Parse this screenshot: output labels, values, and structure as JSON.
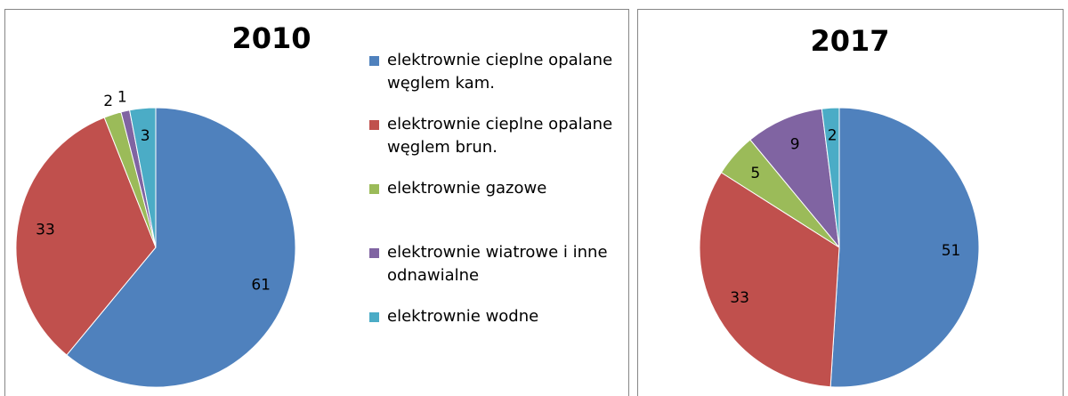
{
  "chart_data": [
    {
      "type": "pie",
      "title": "2010",
      "categories": [
        "elektrownie cieplne opalane węglem kam.",
        "elektrownie cieplne opalane węglem brun.",
        "elektrownie gazowe",
        "elektrownie wiatrowe i inne odnawialne",
        "elektrownie wodne"
      ],
      "values": [
        61,
        33,
        2,
        1,
        3
      ],
      "colors": [
        "#4f81bd",
        "#c0504d",
        "#9bbb59",
        "#8064a2",
        "#4bacc6"
      ]
    },
    {
      "type": "pie",
      "title": "2017",
      "values": [
        51,
        33,
        5,
        9,
        2
      ],
      "colors": [
        "#4f81bd",
        "#c0504d",
        "#9bbb59",
        "#8064a2",
        "#4bacc6"
      ]
    }
  ]
}
